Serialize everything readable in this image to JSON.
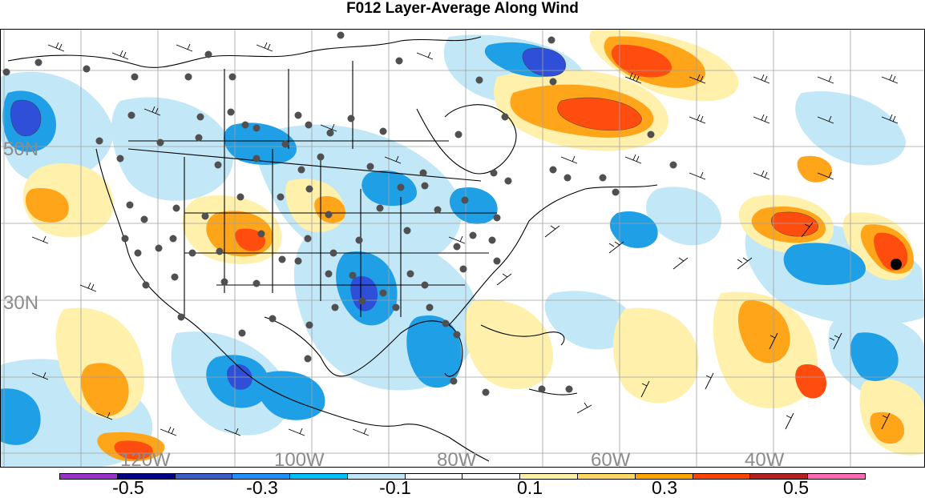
{
  "title": "F012 Layer-Average Along Wind",
  "map": {
    "projection": "lat-lon",
    "basemap": "North America coastlines, US state and Canadian province borders",
    "lat_labels": [
      "50N",
      "30N"
    ],
    "lon_labels": [
      "120W",
      "100W",
      "80W",
      "60W",
      "40W"
    ],
    "overlays": [
      "filled contours of along-wind anomaly",
      "wind barbs",
      "observation stations (grey dots)"
    ]
  },
  "colorbar": {
    "colors": [
      "#9932cc",
      "#00008b",
      "#3a5fcd",
      "#1e90ff",
      "#00bfff",
      "#bfe6f7",
      "#ffffff",
      "#ffffff",
      "#fff0a8",
      "#ffd860",
      "#ffa500",
      "#ff4500",
      "#b22222",
      "#ff69b4"
    ],
    "tick_labels": [
      "-0.5",
      "-0.3",
      "-0.1",
      "0.1",
      "0.3",
      "0.5"
    ]
  }
}
